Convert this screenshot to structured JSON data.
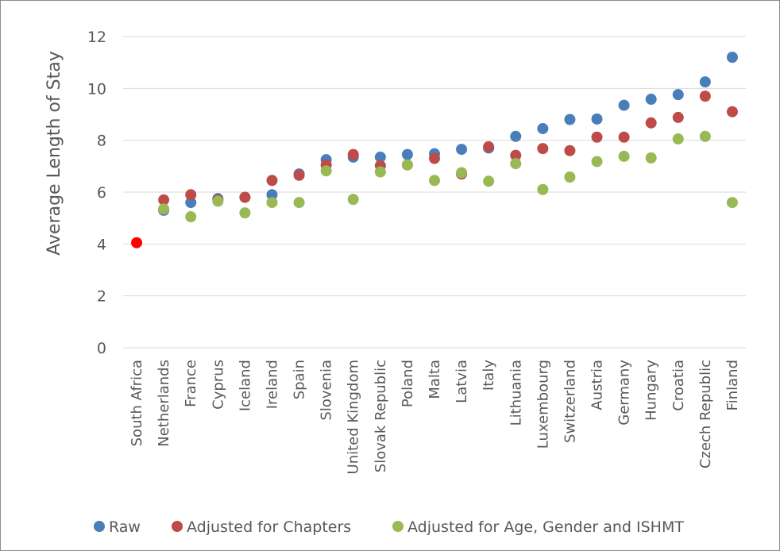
{
  "chart_data": {
    "type": "scatter",
    "title": "",
    "xlabel": "",
    "ylabel": "Average Length of Stay",
    "ylim": [
      0,
      12
    ],
    "yticks": [
      0,
      2,
      4,
      6,
      8,
      10,
      12
    ],
    "grid": "horizontal",
    "legend_position": "bottom",
    "categories": [
      "South Africa",
      "Netherlands",
      "France",
      "Cyprus",
      "Iceland",
      "Ireland",
      "Spain",
      "Slovenia",
      "United Kingdom",
      "Slovak Republic",
      "Poland",
      "Malta",
      "Latvia",
      "Italy",
      "Lithuania",
      "Luxembourg",
      "Switzerland",
      "Austria",
      "Germany",
      "Hungary",
      "Croatia",
      "Czech Republic",
      "Finland"
    ],
    "series": [
      {
        "name": "Raw",
        "color": "#4a7ebb",
        "values": [
          null,
          5.3,
          5.6,
          5.75,
          5.8,
          5.9,
          6.7,
          7.25,
          7.35,
          7.35,
          7.45,
          7.48,
          7.65,
          7.7,
          8.15,
          8.45,
          8.8,
          8.82,
          9.35,
          9.58,
          9.76,
          10.25,
          11.2
        ]
      },
      {
        "name": "Adjusted for Chapters",
        "color": "#be4b48",
        "values": [
          null,
          5.7,
          5.9,
          5.7,
          5.8,
          6.45,
          6.65,
          7.05,
          7.45,
          7.02,
          7.05,
          7.3,
          6.7,
          7.75,
          7.42,
          7.68,
          7.6,
          8.12,
          8.12,
          8.67,
          8.88,
          9.7,
          9.1
        ]
      },
      {
        "name": "Adjusted for Age, Gender and ISHMT",
        "color": "#98b954",
        "values": [
          null,
          5.35,
          5.05,
          5.65,
          5.2,
          5.6,
          5.6,
          6.82,
          5.72,
          6.78,
          7.05,
          6.45,
          6.75,
          6.42,
          7.1,
          6.1,
          6.58,
          7.18,
          7.38,
          7.32,
          8.05,
          8.15,
          5.6
        ]
      }
    ],
    "highlight": {
      "category": "South Africa",
      "value": 4.05,
      "color": "#ff0000"
    }
  }
}
